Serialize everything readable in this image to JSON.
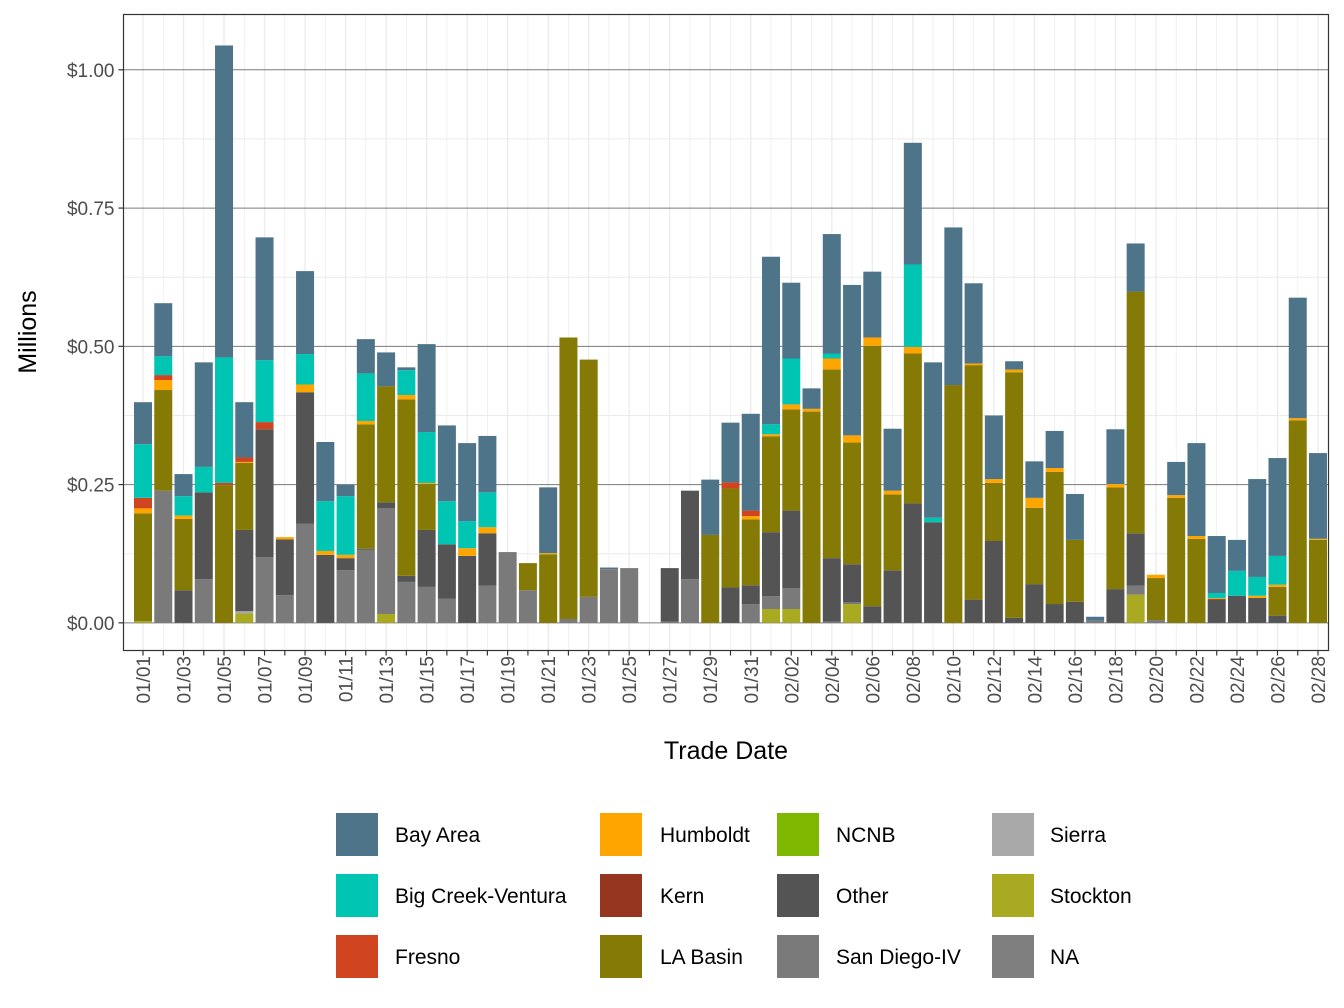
{
  "chart_data": {
    "type": "bar",
    "stacked": true,
    "xlabel": "Trade Date",
    "ylabel": "Millions",
    "y_tick_labels": [
      "$0.00",
      "$0.25",
      "$0.50",
      "$0.75",
      "$1.00"
    ],
    "y_ticks": [
      0,
      0.25,
      0.5,
      0.75,
      1.0
    ],
    "ylim": [
      -0.05,
      1.1
    ],
    "grid": true,
    "legend_position": "bottom",
    "categories": [
      "01/01",
      "01/02",
      "01/03",
      "01/04",
      "01/05",
      "01/06",
      "01/07",
      "01/08",
      "01/09",
      "01/10",
      "01/11",
      "01/12",
      "01/13",
      "01/14",
      "01/15",
      "01/16",
      "01/17",
      "01/18",
      "01/19",
      "01/20",
      "01/21",
      "01/22",
      "01/23",
      "01/24",
      "01/25",
      "01/26",
      "01/27",
      "01/28",
      "01/29",
      "01/30",
      "01/31",
      "02/01",
      "02/02",
      "02/03",
      "02/04",
      "02/05",
      "02/06",
      "02/07",
      "02/08",
      "02/09",
      "02/10",
      "02/11",
      "02/12",
      "02/13",
      "02/14",
      "02/15",
      "02/16",
      "02/17",
      "02/18",
      "02/19",
      "02/20",
      "02/21",
      "02/22",
      "02/23",
      "02/24",
      "02/25",
      "02/26",
      "02/27",
      "02/28"
    ],
    "x_tick_labels": [
      "01/01",
      "01/03",
      "01/05",
      "01/07",
      "01/09",
      "01/11",
      "01/13",
      "01/15",
      "01/17",
      "01/19",
      "01/21",
      "01/23",
      "01/25",
      "01/27",
      "01/29",
      "01/31",
      "02/02",
      "02/04",
      "02/06",
      "02/08",
      "02/10",
      "02/12",
      "02/14",
      "02/16",
      "02/18",
      "02/20",
      "02/22",
      "02/24",
      "02/26",
      "02/28"
    ],
    "series": [
      {
        "name": "Bay Area",
        "color": "#4E7489",
        "values": [
          0.076,
          0.096,
          0.04,
          0.189,
          0.564,
          0.1,
          0.222,
          0,
          0.15,
          0.107,
          0.021,
          0.062,
          0.061,
          0.005,
          0.159,
          0.137,
          0.141,
          0.102,
          0,
          0,
          0.119,
          0,
          0,
          0.003,
          0,
          0,
          0,
          0,
          0.1,
          0.108,
          0.175,
          0.303,
          0.137,
          0.037,
          0.216,
          0.272,
          0.119,
          0.112,
          0.22,
          0.281,
          0.285,
          0.145,
          0.115,
          0.015,
          0.066,
          0.067,
          0.083,
          0.007,
          0.099,
          0.087,
          0,
          0.06,
          0.168,
          0.103,
          0.056,
          0.177,
          0.177,
          0.218,
          0.155
        ]
      },
      {
        "name": "Big Creek-Ventura",
        "color": "#00C5B2",
        "values": [
          0.097,
          0.034,
          0.035,
          0.046,
          0.227,
          0,
          0.112,
          0,
          0.055,
          0.09,
          0.106,
          0.086,
          0,
          0.045,
          0.092,
          0.078,
          0.049,
          0.063,
          0,
          0,
          0,
          0,
          0,
          0,
          0,
          0,
          0,
          0,
          0,
          0,
          0,
          0.018,
          0.083,
          0,
          0.009,
          0,
          0,
          0,
          0.149,
          0.008,
          0,
          0,
          0,
          0,
          0,
          0,
          0,
          0,
          0,
          0,
          0,
          0,
          0,
          0.009,
          0.045,
          0.034,
          0.052,
          0,
          0
        ]
      },
      {
        "name": "Fresno",
        "color": "#D04520",
        "values": [
          0.019,
          0.009,
          0,
          0,
          0.004,
          0.008,
          0.013,
          0,
          0,
          0,
          0,
          0,
          0,
          0,
          0,
          0,
          0,
          0,
          0,
          0,
          0,
          0,
          0,
          0,
          0,
          0,
          0,
          0,
          0,
          0.011,
          0.01,
          0,
          0,
          0,
          0,
          0,
          0,
          0,
          0,
          0,
          0,
          0,
          0,
          0,
          0,
          0,
          0,
          0,
          0,
          0,
          0,
          0,
          0,
          0,
          0,
          0,
          0,
          0,
          0
        ]
      },
      {
        "name": "Humboldt",
        "color": "#FFA500",
        "values": [
          0.009,
          0.018,
          0.006,
          0,
          0,
          0.002,
          0,
          0.004,
          0.014,
          0.007,
          0.006,
          0.006,
          0,
          0.008,
          0.002,
          0,
          0.014,
          0.011,
          0,
          0,
          0.002,
          0,
          0,
          0,
          0,
          0,
          0,
          0,
          0,
          0,
          0.006,
          0.004,
          0.009,
          0.005,
          0.02,
          0.013,
          0.015,
          0.007,
          0.012,
          0,
          0,
          0.003,
          0.007,
          0.005,
          0.018,
          0.007,
          0,
          0,
          0.006,
          0,
          0.006,
          0.005,
          0.005,
          0.002,
          0,
          0.004,
          0.004,
          0.004,
          0.002
        ]
      },
      {
        "name": "Kern",
        "color": "#963621",
        "values": [
          0,
          0,
          0,
          0,
          0,
          0,
          0,
          0,
          0,
          0,
          0,
          0,
          0,
          0,
          0,
          0,
          0,
          0,
          0,
          0,
          0,
          0,
          0,
          0,
          0,
          0,
          0,
          0,
          0,
          0,
          0,
          0,
          0,
          0,
          0,
          0,
          0,
          0,
          0,
          0,
          0,
          0,
          0,
          0,
          0,
          0,
          0,
          0,
          0,
          0,
          0,
          0,
          0,
          0,
          0,
          0,
          0,
          0,
          0
        ]
      },
      {
        "name": "LA Basin",
        "color": "#857A05",
        "values": [
          0.195,
          0.182,
          0.129,
          0,
          0.249,
          0.121,
          0,
          0,
          0,
          0,
          0,
          0.225,
          0.21,
          0.319,
          0.083,
          0,
          0,
          0,
          0,
          0.049,
          0.124,
          0.509,
          0.429,
          0,
          0,
          0,
          0,
          0,
          0.159,
          0.179,
          0.119,
          0.173,
          0.183,
          0.382,
          0.341,
          0.22,
          0.471,
          0.137,
          0.271,
          0,
          0.43,
          0.424,
          0.105,
          0.444,
          0.138,
          0.239,
          0.112,
          0,
          0.184,
          0.437,
          0.076,
          0.226,
          0.152,
          0,
          0,
          0,
          0.052,
          0.366,
          0.15
        ]
      },
      {
        "name": "NCNB",
        "color": "#7FB800",
        "values": [
          0,
          0,
          0,
          0,
          0,
          0,
          0,
          0,
          0,
          0,
          0,
          0,
          0,
          0,
          0,
          0,
          0,
          0,
          0,
          0,
          0,
          0,
          0,
          0,
          0,
          0,
          0,
          0,
          0,
          0,
          0,
          0,
          0,
          0,
          0,
          0,
          0,
          0,
          0,
          0,
          0,
          0,
          0,
          0,
          0,
          0,
          0,
          0,
          0,
          0,
          0,
          0,
          0,
          0,
          0,
          0,
          0,
          0,
          0
        ]
      },
      {
        "name": "Other",
        "color": "#545454",
        "values": [
          0,
          0,
          0.059,
          0.157,
          0,
          0.147,
          0.231,
          0.101,
          0.238,
          0.123,
          0.022,
          0.002,
          0.011,
          0.011,
          0.103,
          0.098,
          0.121,
          0.095,
          0,
          0,
          0,
          0,
          0,
          0,
          0,
          0,
          0.097,
          0.16,
          0,
          0.064,
          0.034,
          0.116,
          0.14,
          0,
          0.115,
          0.069,
          0.03,
          0.095,
          0.216,
          0.182,
          0,
          0.042,
          0.148,
          0.009,
          0.07,
          0.034,
          0.038,
          0,
          0.061,
          0.095,
          0,
          0,
          0,
          0.043,
          0.049,
          0.045,
          0.013,
          0,
          0
        ]
      },
      {
        "name": "San Diego-IV",
        "color": "#7A7A7A",
        "values": [
          0,
          0.239,
          0,
          0.079,
          0,
          0,
          0.119,
          0.05,
          0.179,
          0,
          0.095,
          0.132,
          0.191,
          0.074,
          0.065,
          0.044,
          0,
          0.067,
          0.128,
          0.059,
          0,
          0.007,
          0.047,
          0.097,
          0.099,
          0,
          0.002,
          0.079,
          0,
          0,
          0.034,
          0.023,
          0.038,
          0,
          0.002,
          0.003,
          0,
          0,
          0,
          0,
          0,
          0,
          0,
          0,
          0,
          0,
          0,
          0.004,
          0,
          0.016,
          0.005,
          0,
          0,
          0,
          0,
          0,
          0,
          0,
          0
        ]
      },
      {
        "name": "Sierra",
        "color": "#A9A9A9",
        "values": [
          0,
          0,
          0,
          0,
          0,
          0.004,
          0,
          0,
          0,
          0,
          0,
          0,
          0,
          0,
          0,
          0,
          0,
          0,
          0,
          0,
          0,
          0,
          0,
          0,
          0,
          0,
          0,
          0,
          0,
          0,
          0,
          0,
          0,
          0,
          0,
          0,
          0,
          0,
          0,
          0,
          0,
          0,
          0,
          0,
          0,
          0,
          0,
          0,
          0,
          0,
          0,
          0,
          0,
          0,
          0,
          0,
          0,
          0,
          0
        ]
      },
      {
        "name": "Stockton",
        "color": "#A9A922",
        "values": [
          0.003,
          0,
          0,
          0,
          0,
          0.017,
          0,
          0,
          0,
          0,
          0,
          0,
          0.016,
          0,
          0,
          0,
          0,
          0,
          0,
          0,
          0,
          0,
          0,
          0,
          0,
          0,
          0,
          0,
          0,
          0,
          0,
          0.025,
          0.025,
          0,
          0,
          0.034,
          0,
          0,
          0,
          0,
          0,
          0,
          0,
          0,
          0,
          0,
          0,
          0,
          0,
          0.051,
          0,
          0,
          0,
          0,
          0,
          0,
          0,
          0,
          0
        ]
      },
      {
        "name": "NA",
        "color": "#7F7F7F",
        "values": [
          0,
          0,
          0,
          0,
          0,
          0,
          0,
          0,
          0,
          0,
          0,
          0,
          0,
          0,
          0,
          0,
          0,
          0,
          0,
          0,
          0,
          0,
          0,
          0,
          0,
          0,
          0,
          0,
          0,
          0,
          0,
          0,
          0,
          0,
          0,
          0,
          0,
          0,
          0,
          0,
          0,
          0,
          0,
          0,
          0,
          0,
          0,
          0,
          0,
          0,
          0,
          0,
          0,
          0,
          0,
          0,
          0,
          0,
          0
        ]
      }
    ]
  }
}
